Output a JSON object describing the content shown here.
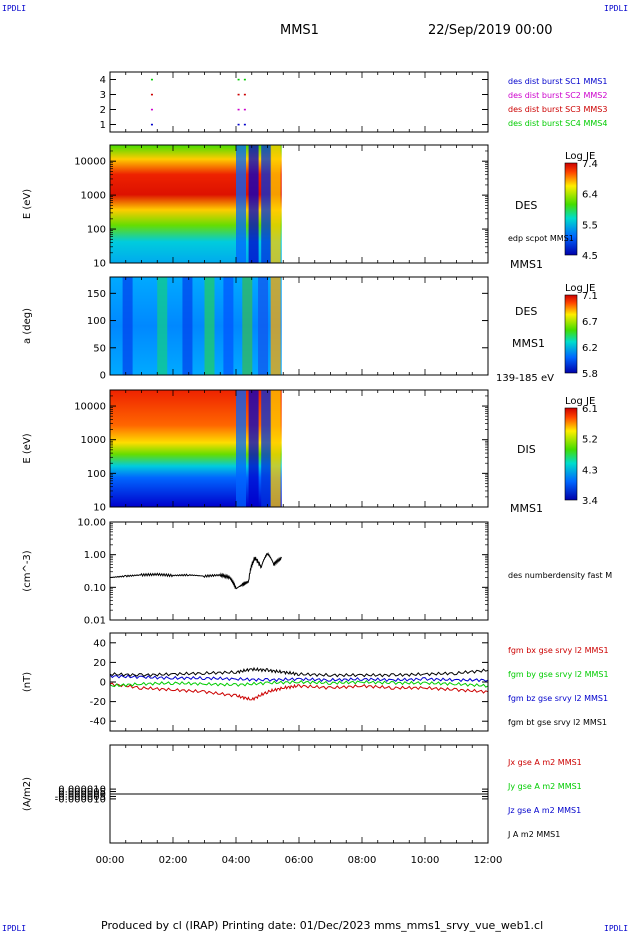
{
  "header": {
    "corner_label": "IPDLI",
    "spacecraft": "MMS1",
    "datetime": "22/Sep/2019 00:00"
  },
  "footer": "Produced by cl (IRAP)   Printing date: 01/Dec/2023   mms_mms1_srvy_vue_web1.cl",
  "chart_data": [
    {
      "id": "burst",
      "type": "scatter",
      "ylabel": "",
      "yticks": [
        "4",
        "3",
        "2",
        "1"
      ],
      "ylim": [
        0.5,
        4.5
      ],
      "legend": [
        {
          "text": "des dist burst SC1 MMS1",
          "color": "#0000cc"
        },
        {
          "text": "des dist burst SC2 MMS2",
          "color": "#cc00cc"
        },
        {
          "text": "des dist burst SC3 MMS3",
          "color": "#cc0000"
        },
        {
          "text": "des dist burst SC4 MMS4",
          "color": "#00cc00"
        }
      ],
      "marks": [
        {
          "sc": 4,
          "t": [
            1.3,
            4.05,
            4.25
          ],
          "color": "#00cc00"
        },
        {
          "sc": 3,
          "t": [
            1.3,
            4.05,
            4.25
          ],
          "color": "#cc0000"
        },
        {
          "sc": 2,
          "t": [
            1.3,
            4.05,
            4.25
          ],
          "color": "#cc00cc"
        },
        {
          "sc": 1,
          "t": [
            1.3,
            4.05,
            4.25
          ],
          "color": "#0000cc"
        }
      ]
    },
    {
      "id": "des_energy",
      "type": "heatmap",
      "ylabel": "E (eV)",
      "yscale": "log",
      "ylim": [
        10,
        30000
      ],
      "yticks": [
        "10000",
        "1000",
        "100",
        "10"
      ],
      "data_end_hour": 5.45,
      "right_text": [
        "DES",
        "edp scpot MMS1",
        "MMS1"
      ],
      "colorbar": {
        "title": "Log JE",
        "ticks": [
          "7.4",
          "6.4",
          "5.5",
          "4.5"
        ],
        "range": [
          4.5,
          7.4
        ]
      }
    },
    {
      "id": "des_pitch",
      "type": "heatmap",
      "ylabel": "a (deg)",
      "ylim": [
        0,
        180
      ],
      "yticks": [
        "150",
        "100",
        "50",
        "0"
      ],
      "data_end_hour": 5.45,
      "right_text": [
        "DES",
        "MMS1",
        "139-185 eV"
      ],
      "colorbar": {
        "title": "Log JE",
        "ticks": [
          "7.1",
          "6.7",
          "6.2",
          "5.8"
        ],
        "range": [
          5.8,
          7.1
        ]
      }
    },
    {
      "id": "dis_energy",
      "type": "heatmap",
      "ylabel": "E (eV)",
      "yscale": "log",
      "ylim": [
        10,
        30000
      ],
      "yticks": [
        "10000",
        "1000",
        "100",
        "10"
      ],
      "data_end_hour": 5.45,
      "right_text": [
        "DIS",
        "MMS1"
      ],
      "colorbar": {
        "title": "Log JE",
        "ticks": [
          "6.1",
          "5.2",
          "4.3",
          "3.4"
        ],
        "range": [
          3.4,
          6.1
        ]
      }
    },
    {
      "id": "density",
      "type": "line",
      "ylabel": "(cm^-3)",
      "yscale": "log",
      "ylim": [
        0.01,
        10
      ],
      "yticks": [
        "10.00",
        "1.00",
        "0.10",
        "0.01"
      ],
      "series": [
        {
          "name": "des numberdensity fast M",
          "color": "#000000",
          "x": [
            0,
            0.5,
            1,
            1.5,
            2,
            2.5,
            3,
            3.5,
            3.8,
            4.0,
            4.2,
            4.4,
            4.6,
            4.8,
            5.0,
            5.2,
            5.45
          ],
          "y": [
            0.2,
            0.22,
            0.24,
            0.25,
            0.23,
            0.24,
            0.22,
            0.24,
            0.2,
            0.09,
            0.12,
            0.15,
            0.8,
            0.4,
            1.1,
            0.5,
            0.8
          ]
        }
      ]
    },
    {
      "id": "fgm",
      "type": "line",
      "ylabel": "(nT)",
      "ylim": [
        -50,
        50
      ],
      "yticks": [
        "40",
        "20",
        "0",
        "-20",
        "-40"
      ],
      "series": [
        {
          "name": "fgm bx gse srvy l2 MMS1",
          "color": "#cc0000",
          "x": [
            0,
            1,
            2,
            3,
            4,
            4.5,
            5,
            5.5,
            6,
            7,
            8,
            9,
            10,
            11,
            12
          ],
          "y": [
            -2,
            -6,
            -8,
            -10,
            -14,
            -18,
            -10,
            -6,
            -4,
            -6,
            -4,
            -6,
            -6,
            -8,
            -10
          ]
        },
        {
          "name": "fgm by gse srvy l2 MMS1",
          "color": "#00cc00",
          "x": [
            0,
            1,
            2,
            3,
            4,
            5,
            6,
            7,
            8,
            9,
            10,
            11,
            12
          ],
          "y": [
            -4,
            -2,
            -1,
            -2,
            -3,
            -1,
            0,
            -1,
            0,
            -1,
            -1,
            -2,
            -4
          ]
        },
        {
          "name": "fgm bz gse srvy l2 MMS1",
          "color": "#0000cc",
          "x": [
            0,
            1,
            2,
            3,
            4,
            5,
            6,
            7,
            8,
            9,
            10,
            11,
            12
          ],
          "y": [
            6,
            5,
            4,
            4,
            3,
            2,
            3,
            2,
            3,
            2,
            3,
            2,
            2
          ]
        },
        {
          "name": "fgm bt gse srvy l2 MMS1",
          "color": "#000000",
          "x": [
            0,
            1,
            2,
            3,
            4,
            4.5,
            5,
            5.5,
            6,
            7,
            8,
            9,
            10,
            11,
            12
          ],
          "y": [
            8,
            7,
            8,
            9,
            10,
            13,
            12,
            10,
            8,
            7,
            7,
            7,
            8,
            9,
            12
          ]
        }
      ]
    },
    {
      "id": "current",
      "type": "line",
      "ylabel": "(A/m2)",
      "ylim": [
        -0.0001,
        0.0001
      ],
      "yticks": [
        "0.000010",
        "0.000005",
        "0.000000",
        "-0.000005",
        "-0.000010"
      ],
      "series": [
        {
          "name": "Jx gse A m2 MMS1",
          "color": "#cc0000",
          "x": [
            0,
            12
          ],
          "y": [
            0,
            0
          ]
        },
        {
          "name": "Jy gse A m2 MMS1",
          "color": "#00cc00",
          "x": [
            0,
            12
          ],
          "y": [
            0,
            0
          ]
        },
        {
          "name": "Jz gse A m2 MMS1",
          "color": "#0000cc",
          "x": [
            0,
            12
          ],
          "y": [
            0,
            0
          ]
        },
        {
          "name": "J A m2 MMS1",
          "color": "#000000",
          "x": [
            0,
            12
          ],
          "y": [
            0,
            0
          ]
        }
      ]
    }
  ],
  "xaxis": {
    "range": [
      0,
      12
    ],
    "ticks": [
      {
        "h": 0,
        "label": "00:00"
      },
      {
        "h": 2,
        "label": "02:00"
      },
      {
        "h": 4,
        "label": "04:00"
      },
      {
        "h": 6,
        "label": "06:00"
      },
      {
        "h": 8,
        "label": "08:00"
      },
      {
        "h": 10,
        "label": "10:00"
      },
      {
        "h": 12,
        "label": "12:00"
      }
    ]
  }
}
